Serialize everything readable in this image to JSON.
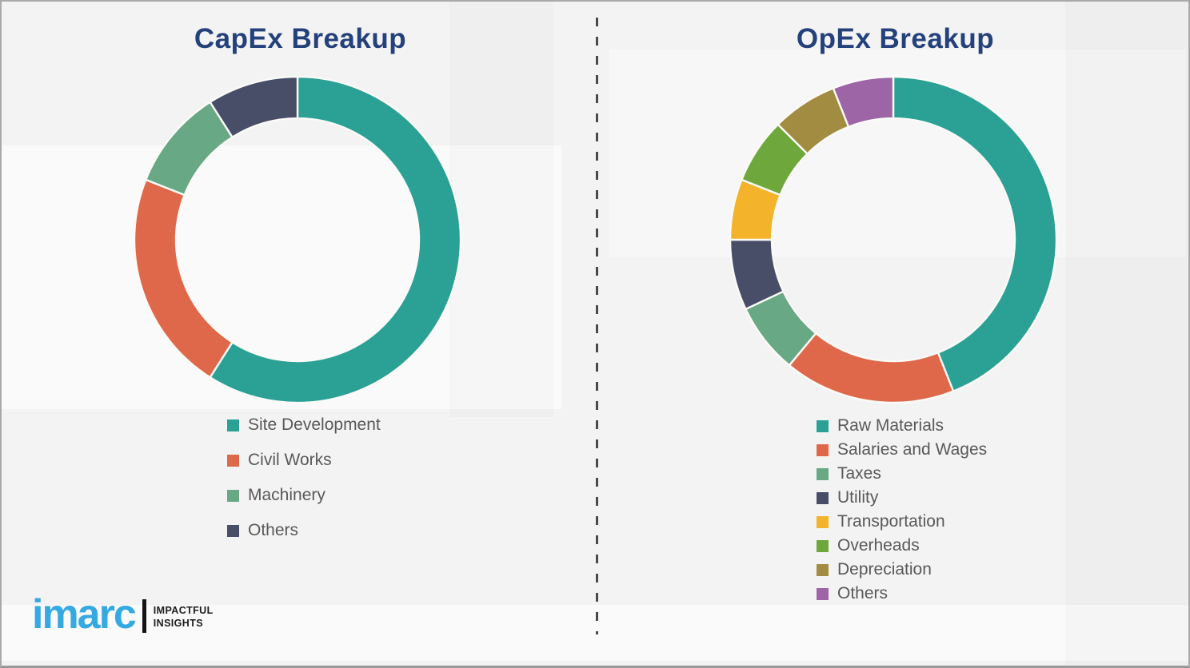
{
  "page": {
    "background_color": "#f3f3f4",
    "divider_style": "vertical-dashed",
    "divider_color": "#4a4a4a",
    "title_color": "#24417B",
    "legend_text_color": "#595959"
  },
  "chart_data": [
    {
      "type": "pie",
      "subtype": "donut",
      "title": "CapEx Breakup",
      "labels": [
        "Site Development",
        "Civil Works",
        "Machinery",
        "Others"
      ],
      "values": [
        59,
        22,
        10,
        9
      ],
      "colors": [
        "#2BA195",
        "#E0684A",
        "#68A884",
        "#484E68"
      ],
      "start_angle_deg": 0,
      "direction": "clockwise",
      "donut_hole_ratio": 0.745,
      "segment_gap_color": "#fafaf7",
      "legend_position": "below-left",
      "data_labels_shown": false
    },
    {
      "type": "pie",
      "subtype": "donut",
      "title": "OpEx Breakup",
      "labels": [
        "Raw Materials",
        "Salaries and Wages",
        "Taxes",
        "Utility",
        "Transportation",
        "Overheads",
        "Depreciation",
        "Others"
      ],
      "values": [
        44,
        17,
        7,
        7,
        6,
        6.5,
        6.5,
        6
      ],
      "colors": [
        "#2BA195",
        "#E0684A",
        "#68A884",
        "#484E68",
        "#F3B32A",
        "#6EA83C",
        "#A28C41",
        "#9D64A6"
      ],
      "start_angle_deg": 0,
      "direction": "clockwise",
      "donut_hole_ratio": 0.745,
      "segment_gap_color": "#fafaf7",
      "legend_position": "below-left",
      "data_labels_shown": false
    }
  ],
  "logo": {
    "brand": "imarc",
    "tagline_line1": "IMPACTFUL",
    "tagline_line2": "INSIGHTS",
    "brand_color": "#35A9E1"
  }
}
